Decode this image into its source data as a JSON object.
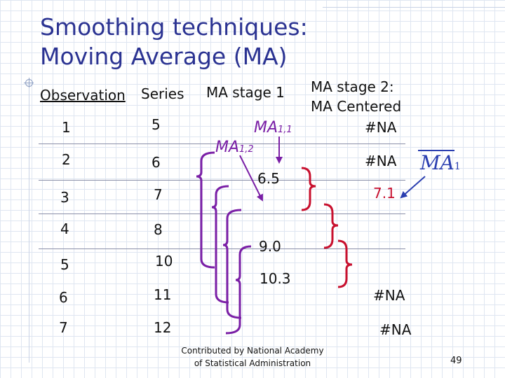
{
  "title": {
    "line1": "Smoothing techniques:",
    "line2": "Moving Average (MA)"
  },
  "headers": {
    "observation": "Observation",
    "series": "Series",
    "ma_stage1": "MA stage 1",
    "ma_stage2_line1": "MA stage 2:",
    "ma_stage2_line2": "MA Centered"
  },
  "rows": [
    {
      "obs": "1",
      "series": "5"
    },
    {
      "obs": "2",
      "series": "6"
    },
    {
      "obs": "3",
      "series": "7"
    },
    {
      "obs": "4",
      "series": "8"
    },
    {
      "obs": "5",
      "series": "10"
    },
    {
      "obs": "6",
      "series": "11"
    },
    {
      "obs": "7",
      "series": "12"
    }
  ],
  "stage1": {
    "label_ma11": "MA",
    "label_ma11_sub": "1,1",
    "label_ma12": "MA",
    "label_ma12_sub": "1,2",
    "values": [
      "6.5",
      "9.0",
      "10.3"
    ]
  },
  "stage2": {
    "na_values": [
      "#NA",
      "#NA",
      "#NA",
      "#NA"
    ],
    "value": "7.1"
  },
  "formula": {
    "main": "MA",
    "sub": "1"
  },
  "footer": {
    "line1": "Contributed by National Academy",
    "line2": "of Statistical Administration"
  },
  "page_number": "49",
  "colors": {
    "title": "#2b3392",
    "purple": "#7a1fa6",
    "red": "#c8102e",
    "arrow": "#2b3fb0"
  }
}
